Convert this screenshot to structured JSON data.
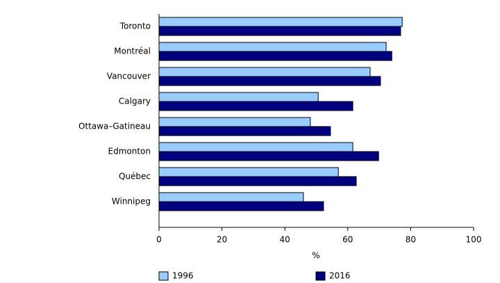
{
  "chart_data": {
    "type": "bar",
    "orientation": "horizontal",
    "categories": [
      "Toronto",
      "Montréal",
      "Vancouver",
      "Calgary",
      "Ottawa–Gatineau",
      "Edmonton",
      "Québec",
      "Winnipeg"
    ],
    "series": [
      {
        "name": "1996",
        "color": "#99ccff",
        "values": [
          77.3,
          72.2,
          67.1,
          50.6,
          48.1,
          61.6,
          57.0,
          45.9
        ]
      },
      {
        "name": "2016",
        "color": "#000080",
        "values": [
          76.8,
          74.0,
          70.4,
          61.6,
          54.5,
          69.8,
          62.7,
          52.3
        ]
      }
    ],
    "x_label": "%",
    "xlim": [
      0,
      100
    ],
    "xticks": [
      0,
      20,
      40,
      60,
      80,
      100
    ],
    "grid": false,
    "legend": "bottom"
  }
}
